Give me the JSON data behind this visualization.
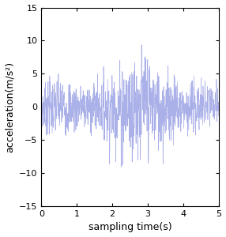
{
  "title": "",
  "xlabel": "sampling time(s)",
  "ylabel": "acceleration(m/s²)",
  "xlim": [
    0,
    5
  ],
  "ylim": [
    -15,
    15
  ],
  "yticks": [
    -15,
    -10,
    -5,
    0,
    5,
    10,
    15
  ],
  "xticks": [
    0,
    1,
    2,
    3,
    4,
    5
  ],
  "line_color": "#aab0e8",
  "background_color": "#ffffff",
  "fs": 200,
  "duration": 5.0,
  "seed": 7,
  "xlabel_fontsize": 9,
  "ylabel_fontsize": 9,
  "tick_fontsize": 8,
  "linewidth": 0.5
}
